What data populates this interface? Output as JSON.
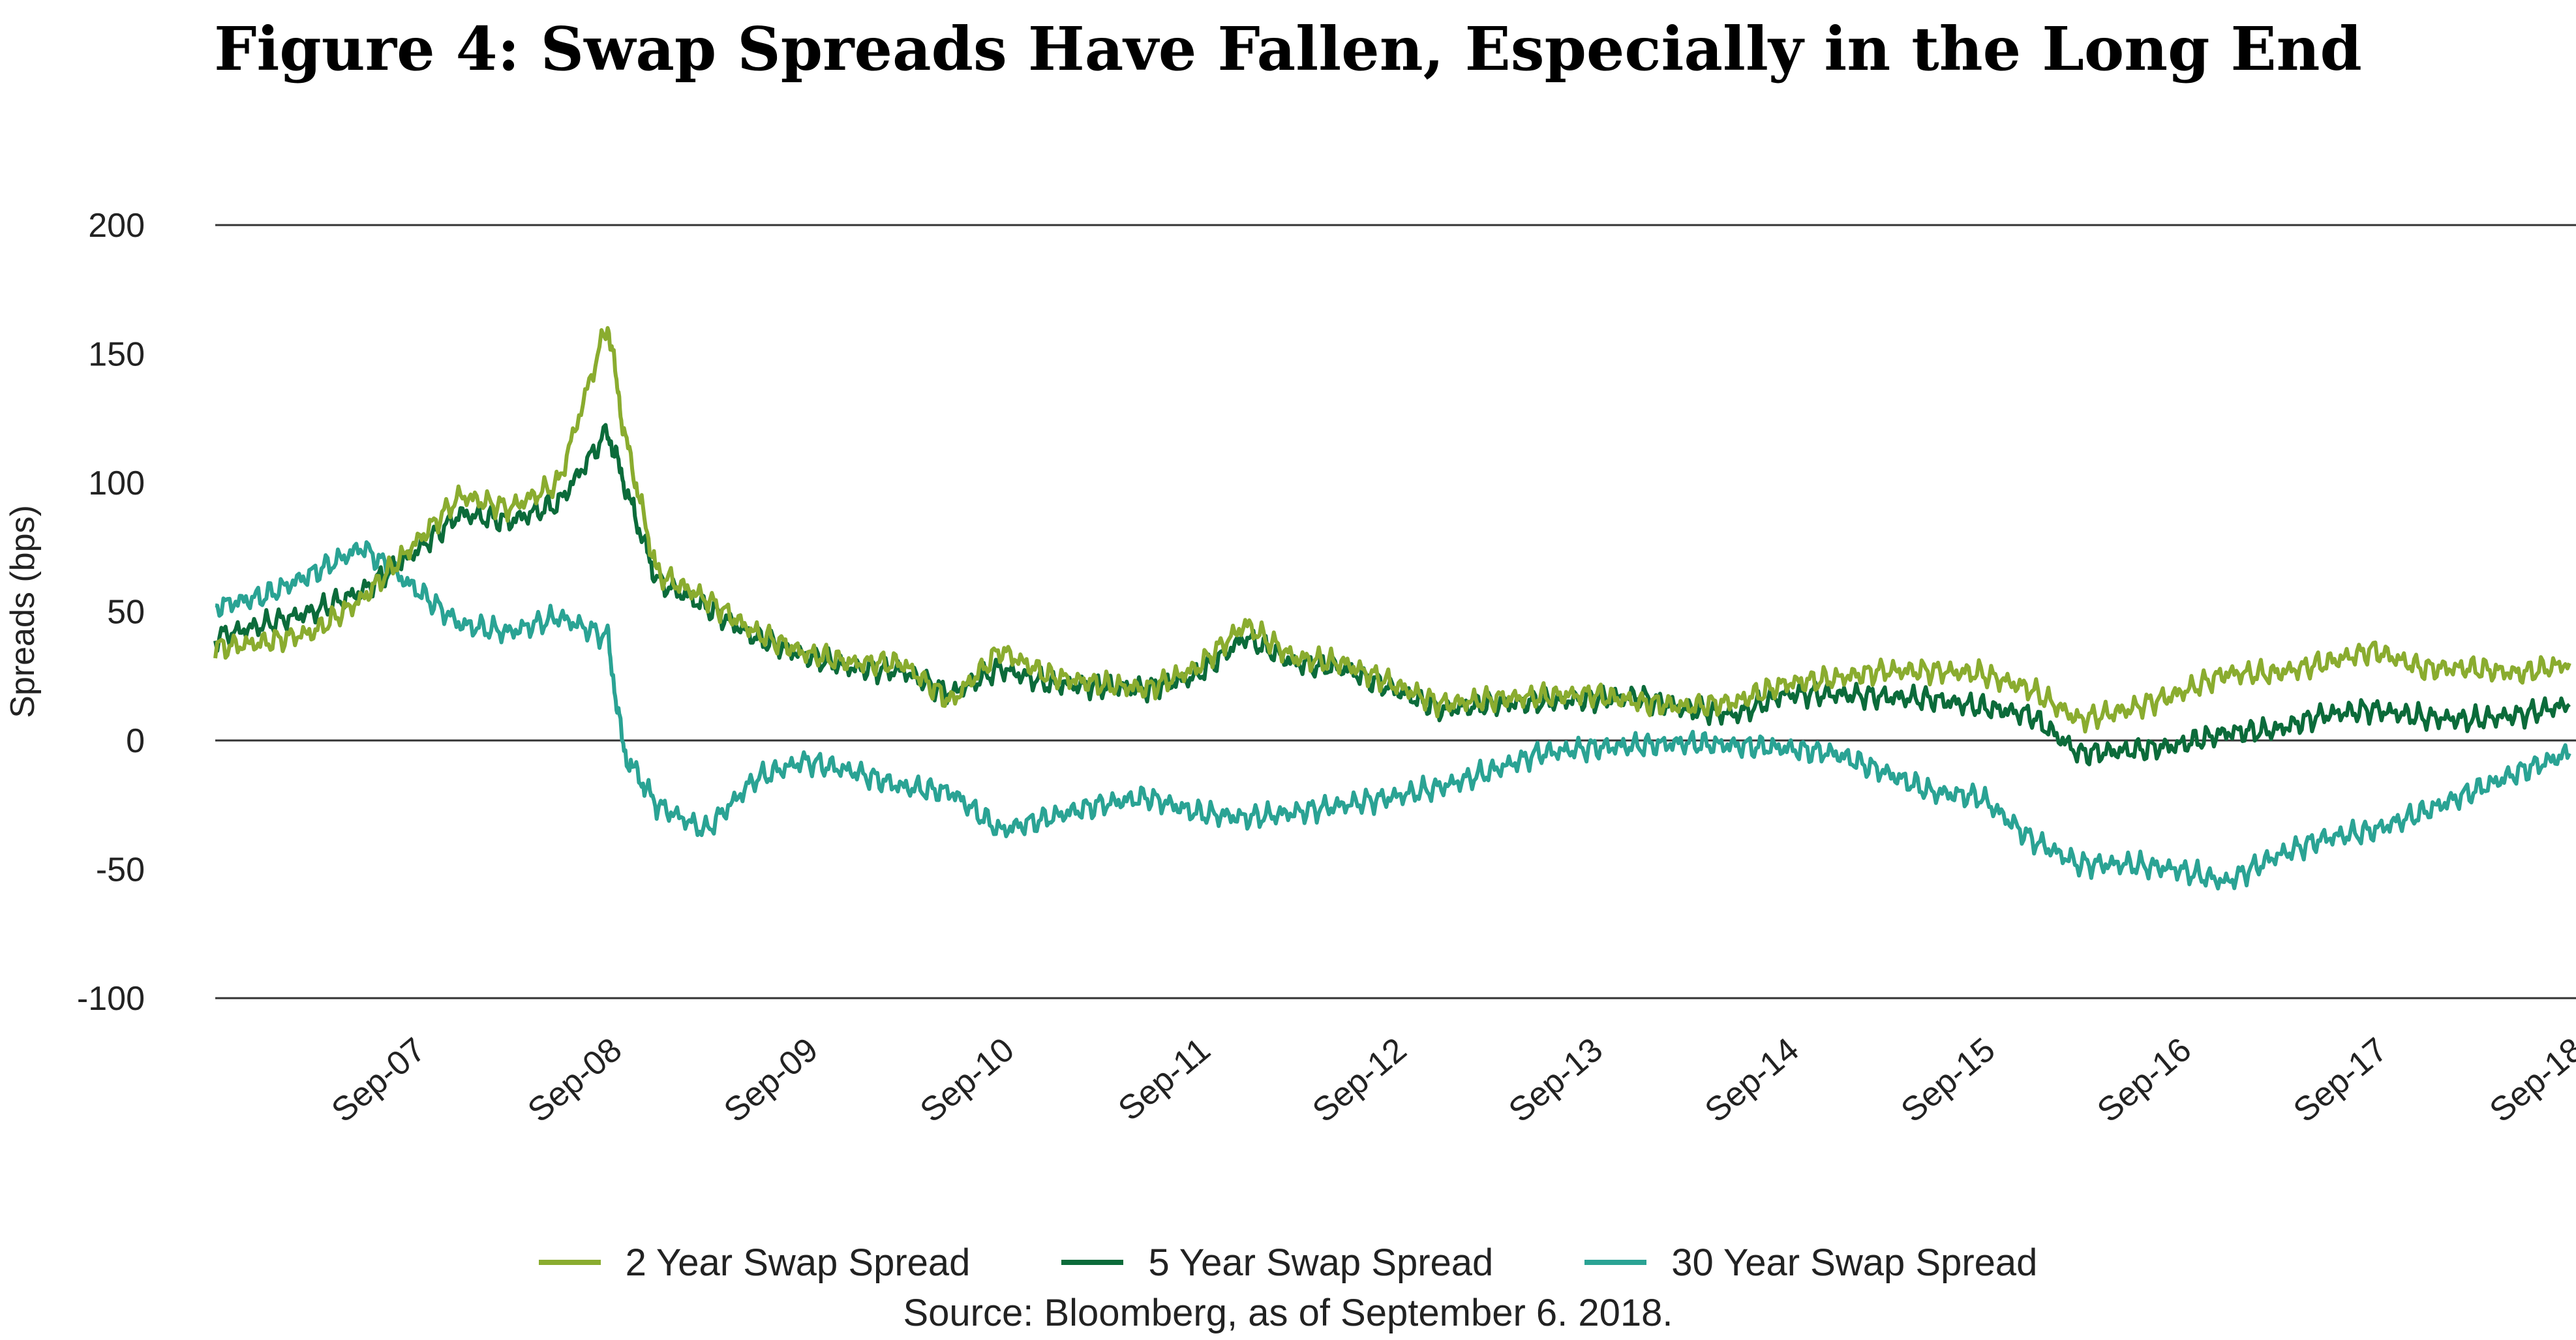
{
  "title": "Figure 4: Swap Spreads Have Fallen, Especially in the Long End",
  "source": "Source: Bloomberg, as of September 6. 2018.",
  "chart_data": {
    "type": "line",
    "ylabel": "Spreads (bps)",
    "xlabel": "",
    "ylim": [
      -100,
      200
    ],
    "yticks": [
      200,
      150,
      100,
      50,
      0,
      -50,
      -100
    ],
    "x_start": "2006-09",
    "x_end": "2018-09",
    "x_tick_labels": [
      "Sep-07",
      "Sep-08",
      "Sep-09",
      "Sep-10",
      "Sep-11",
      "Sep-12",
      "Sep-13",
      "Sep-14",
      "Sep-15",
      "Sep-16",
      "Sep-17",
      "Sep-18"
    ],
    "x": [
      "2006-09",
      "2006-12",
      "2007-03",
      "2007-06",
      "2007-09",
      "2007-12",
      "2008-03",
      "2008-06",
      "2008-09",
      "2008-10",
      "2008-12",
      "2009-03",
      "2009-06",
      "2009-09",
      "2009-12",
      "2010-03",
      "2010-06",
      "2010-09",
      "2010-12",
      "2011-03",
      "2011-06",
      "2011-09",
      "2011-12",
      "2012-03",
      "2012-06",
      "2012-09",
      "2012-12",
      "2013-03",
      "2013-06",
      "2013-09",
      "2013-12",
      "2014-03",
      "2014-06",
      "2014-09",
      "2014-12",
      "2015-03",
      "2015-06",
      "2015-09",
      "2015-12",
      "2016-03",
      "2016-06",
      "2016-09",
      "2016-12",
      "2017-03",
      "2017-06",
      "2017-09",
      "2017-12",
      "2018-03",
      "2018-06",
      "2018-09"
    ],
    "series": [
      {
        "name": "2 Year Swap Spread",
        "color": "#8aac2f",
        "values": [
          36,
          38,
          42,
          55,
          75,
          95,
          90,
          100,
          162,
          120,
          65,
          55,
          42,
          34,
          30,
          30,
          15,
          35,
          25,
          22,
          20,
          28,
          45,
          32,
          30,
          22,
          14,
          16,
          17,
          18,
          15,
          13,
          15,
          22,
          24,
          27,
          27,
          26,
          20,
          8,
          12,
          18,
          26,
          26,
          30,
          35,
          28,
          28,
          26,
          30
        ]
      },
      {
        "name": "5 Year Swap Spread",
        "color": "#0b6b3a",
        "values": [
          40,
          45,
          50,
          58,
          72,
          88,
          85,
          92,
          120,
          100,
          62,
          52,
          40,
          33,
          28,
          27,
          18,
          28,
          22,
          21,
          20,
          25,
          40,
          30,
          28,
          20,
          12,
          14,
          15,
          16,
          17,
          12,
          10,
          18,
          18,
          17,
          16,
          13,
          10,
          -5,
          -4,
          -2,
          3,
          4,
          10,
          12,
          9,
          8,
          10,
          14
        ]
      },
      {
        "name": "30 Year Swap Spread",
        "color": "#2aa394",
        "values": [
          52,
          56,
          65,
          75,
          60,
          45,
          42,
          48,
          40,
          -5,
          -25,
          -35,
          -15,
          -8,
          -12,
          -18,
          -20,
          -35,
          -30,
          -25,
          -22,
          -28,
          -30,
          -28,
          -25,
          -22,
          -18,
          -12,
          -5,
          -3,
          -2,
          -1,
          -2,
          -3,
          -5,
          -12,
          -20,
          -22,
          -38,
          -48,
          -48,
          -50,
          -55,
          -45,
          -38,
          -35,
          -28,
          -20,
          -12,
          -5
        ]
      }
    ],
    "legend_position": "bottom",
    "grid": "horizontal"
  }
}
